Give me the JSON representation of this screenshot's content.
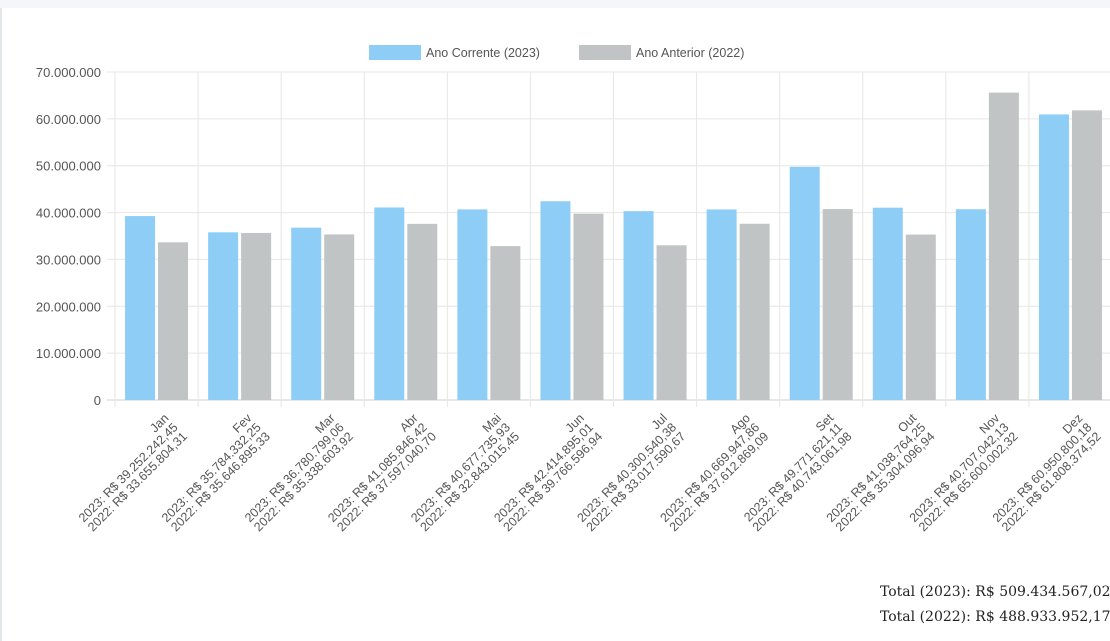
{
  "chart_data": {
    "type": "bar",
    "categories": [
      "Jan",
      "Fev",
      "Mar",
      "Abr",
      "Mai",
      "Jun",
      "Jul",
      "Ago",
      "Set",
      "Out",
      "Nov",
      "Dez"
    ],
    "category_labels": [
      [
        "Jan",
        "2023: R$ 39.252.242,45",
        "2022: R$ 33.655.804,31"
      ],
      [
        "Fev",
        "2023: R$ 35.784.332,25",
        "2022: R$ 35.646.895,33"
      ],
      [
        "Mar",
        "2023: R$ 36.780.799,06",
        "2022: R$ 35.338.603,92"
      ],
      [
        "Abr",
        "2023: R$ 41.085.846,42",
        "2022: R$ 37.597.040,70"
      ],
      [
        "Mai",
        "2023: R$ 40.677.735,93",
        "2022: R$ 32.843.015,45"
      ],
      [
        "Jun",
        "2023: R$ 42.414.895,01",
        "2022: R$ 39.766.596,94"
      ],
      [
        "Jul",
        "2023: R$ 40.300.540,38",
        "2022: R$ 33.017.590,67"
      ],
      [
        "Ago",
        "2023: R$ 40.669.947,86",
        "2022: R$ 37.612.869,09"
      ],
      [
        "Set",
        "2023: R$ 49.771.621,11",
        "2022: R$ 40.743.061,98"
      ],
      [
        "Out",
        "2023: R$ 41.038.764,25",
        "2022: R$ 35.304.096,94"
      ],
      [
        "Nov",
        "2023: R$ 40.707.042,13",
        "2022: R$ 65.600.002,32"
      ],
      [
        "Dez",
        "2023: R$ 60.950.800,18",
        "2022: R$ 61.808.374,52"
      ]
    ],
    "series": [
      {
        "name": "Ano Corrente (2023)",
        "color": "#8ecdf5",
        "values": [
          39252242.45,
          35784332.25,
          36780799.06,
          41085846.42,
          40677735.93,
          42414895.01,
          40300540.38,
          40669947.86,
          49771621.11,
          41038764.25,
          40707042.13,
          60950800.18
        ]
      },
      {
        "name": "Ano Anterior (2022)",
        "color": "#c0c4c4",
        "values": [
          33655804.31,
          35646895.33,
          35338603.92,
          37597040.7,
          32843015.45,
          39766596.94,
          33017590.67,
          37612869.09,
          40743061.98,
          35304096.94,
          65600002.32,
          61808374.52
        ]
      }
    ],
    "y_ticks": [
      "70.000.000",
      "60.000.000",
      "50.000.000",
      "40.000.000",
      "30.000.000",
      "20.000.000",
      "10.000.000",
      "0"
    ],
    "ylim": [
      0,
      70000000
    ],
    "grid": true,
    "legend_position": "top-center"
  },
  "totals": {
    "line_2023": "Total (2023): R$ 509.434.567,02",
    "line_2022": "Total (2022): R$ 488.933.952,17"
  }
}
